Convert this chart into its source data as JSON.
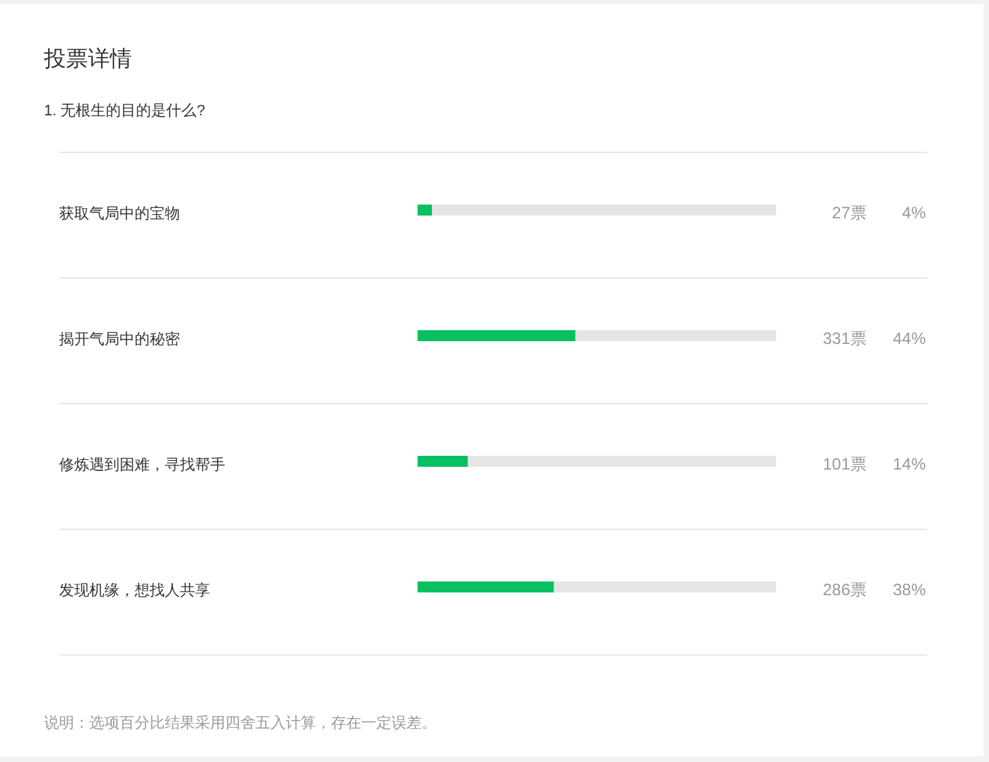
{
  "chart_data": {
    "type": "bar",
    "orientation": "horizontal",
    "title": "投票详情",
    "subtitle": "1. 无根生的目的是什么?",
    "categories": [
      "获取气局中的宝物",
      "揭开气局中的秘密",
      "修炼遇到困难，寻找帮手",
      "发现机缘，想找人共享"
    ],
    "values": [
      4,
      44,
      14,
      38
    ],
    "color": "#07c160",
    "value_labels": [
      "4%",
      "44%",
      "14%",
      "38%"
    ],
    "xlim": [
      0,
      100
    ],
    "tick_labels": "y",
    "annotations": [
      "27票",
      "331票",
      "101票",
      "286票",
      "说明：选项百分比结果采用四舍五入计算，存在一定误差。"
    ]
  }
}
